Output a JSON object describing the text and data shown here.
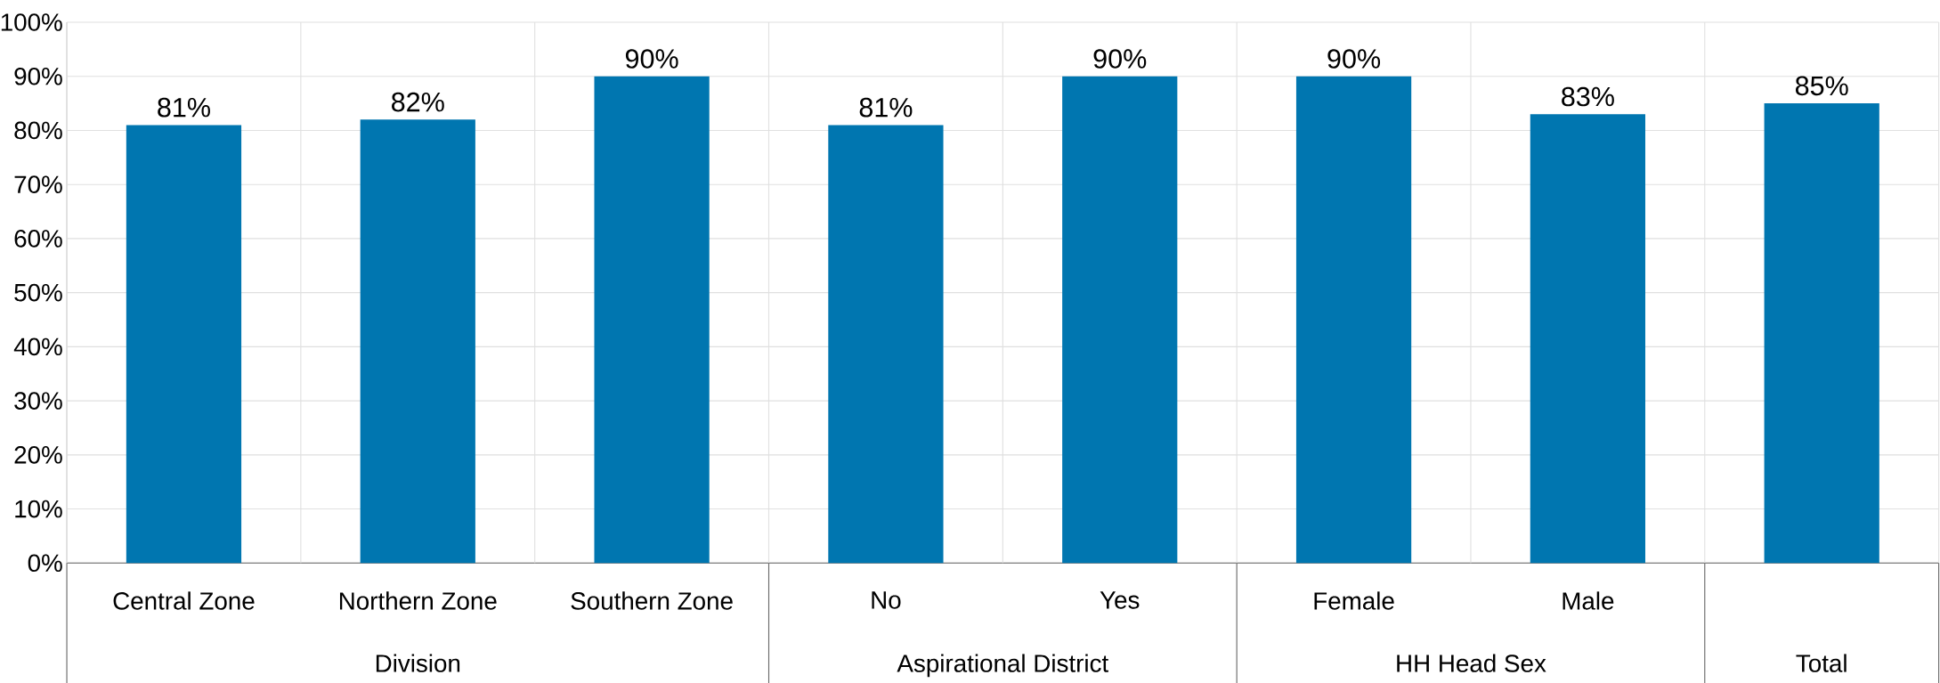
{
  "chart_data": {
    "type": "bar",
    "categories": [
      "Central Zone",
      "Northern Zone",
      "Southern Zone",
      "No",
      "Yes",
      "Female",
      "Male",
      null
    ],
    "values": [
      81,
      82,
      90,
      81,
      90,
      90,
      83,
      85
    ],
    "value_labels": [
      "81%",
      "82%",
      "90%",
      "81%",
      "90%",
      "90%",
      "83%",
      "85%"
    ],
    "color": "#0076b0",
    "ylim": [
      0,
      100
    ],
    "yticks": [
      {
        "value": 0,
        "label": "0%"
      },
      {
        "value": 10,
        "label": "10%"
      },
      {
        "value": 20,
        "label": "20%"
      },
      {
        "value": 30,
        "label": "30%"
      },
      {
        "value": 40,
        "label": "40%"
      },
      {
        "value": 50,
        "label": "50%"
      },
      {
        "value": 60,
        "label": "60%"
      },
      {
        "value": 70,
        "label": "70%"
      },
      {
        "value": 80,
        "label": "80%"
      },
      {
        "value": 90,
        "label": "90%"
      },
      {
        "value": 100,
        "label": "100%"
      }
    ],
    "grid": true,
    "annotations": [
      "Division",
      "Aspirational District",
      "HH Head Sex",
      "Total"
    ]
  }
}
